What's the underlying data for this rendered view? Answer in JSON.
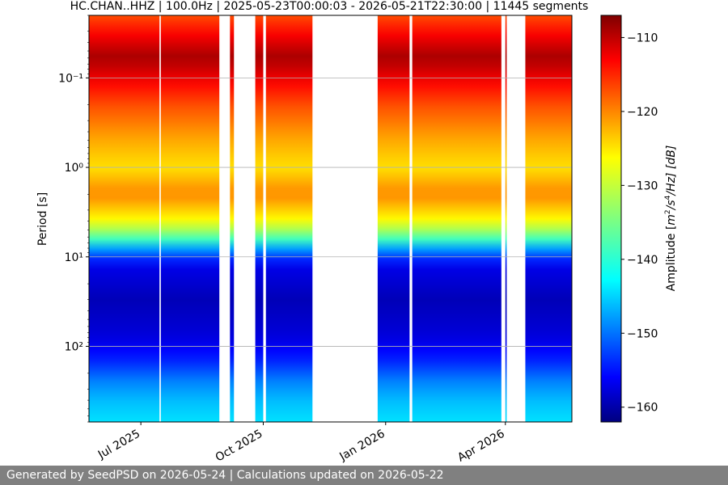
{
  "chart_data": {
    "type": "heatmap",
    "title": "HC.CHAN..HHZ | 100.0Hz | 2025-05-23T00:00:03 - 2026-05-21T22:30:00 | 11445 segments",
    "xlabel": "",
    "ylabel": "Period [s]",
    "x_ticks": [
      "Jul 2025",
      "Oct 2025",
      "Jan 2026",
      "Apr 2026"
    ],
    "x_tick_dates": [
      "2025-07-01",
      "2025-10-01",
      "2026-01-01",
      "2026-04-01"
    ],
    "xlim": [
      "2025-05-23",
      "2026-05-21"
    ],
    "y_scale": "log",
    "y_inverted": true,
    "ylim": [
      0.02,
      700
    ],
    "y_ticks": [
      0.1,
      1,
      10,
      100
    ],
    "y_tick_labels": [
      "10⁻¹",
      "10⁰",
      "10¹",
      "10²"
    ],
    "y_grid": true,
    "colormap": "jet",
    "colorbar_label": "Amplitude [m²/s⁴/Hz] [dB]",
    "colorbar_label_parts": {
      "prefix": "Amplitude [",
      "m": "m",
      "e2": "2",
      "s": "/s",
      "e4": "4",
      "hz": "/Hz] [dB]"
    },
    "color_range": [
      -162,
      -107
    ],
    "colorbar_ticks": [
      -110,
      -120,
      -130,
      -140,
      -150,
      -160
    ],
    "colorbar_tick_labels": [
      "−110",
      "−120",
      "−130",
      "−140",
      "−150",
      "−160"
    ],
    "data_periods": [
      {
        "start": "2025-05-23",
        "end": "2025-07-15"
      },
      {
        "start": "2025-07-16",
        "end": "2025-08-29"
      },
      {
        "start": "2025-09-06",
        "end": "2025-09-09"
      },
      {
        "start": "2025-09-25",
        "end": "2025-10-01"
      },
      {
        "start": "2025-10-03",
        "end": "2025-11-07"
      },
      {
        "start": "2025-12-26",
        "end": "2026-01-19"
      },
      {
        "start": "2026-01-21",
        "end": "2026-03-29"
      },
      {
        "start": "2026-04-01",
        "end": "2026-04-02"
      },
      {
        "start": "2026-04-16",
        "end": "2026-05-21"
      }
    ],
    "amplitude_profile": [
      {
        "period": 0.02,
        "db": -118
      },
      {
        "period": 0.04,
        "db": -112
      },
      {
        "period": 0.06,
        "db": -109
      },
      {
        "period": 0.1,
        "db": -113
      },
      {
        "period": 0.2,
        "db": -118
      },
      {
        "period": 0.5,
        "db": -123
      },
      {
        "period": 1,
        "db": -126
      },
      {
        "period": 2,
        "db": -121
      },
      {
        "period": 4,
        "db": -128
      },
      {
        "period": 6,
        "db": -136
      },
      {
        "period": 8,
        "db": -146
      },
      {
        "period": 12,
        "db": -156
      },
      {
        "period": 30,
        "db": -159
      },
      {
        "period": 80,
        "db": -157
      },
      {
        "period": 150,
        "db": -153
      },
      {
        "period": 250,
        "db": -148
      },
      {
        "period": 400,
        "db": -145
      },
      {
        "period": 700,
        "db": -143
      }
    ]
  },
  "footer": {
    "text": "Generated by SeedPSD on 2026-05-24 | Calculations updated on 2026-05-22"
  }
}
